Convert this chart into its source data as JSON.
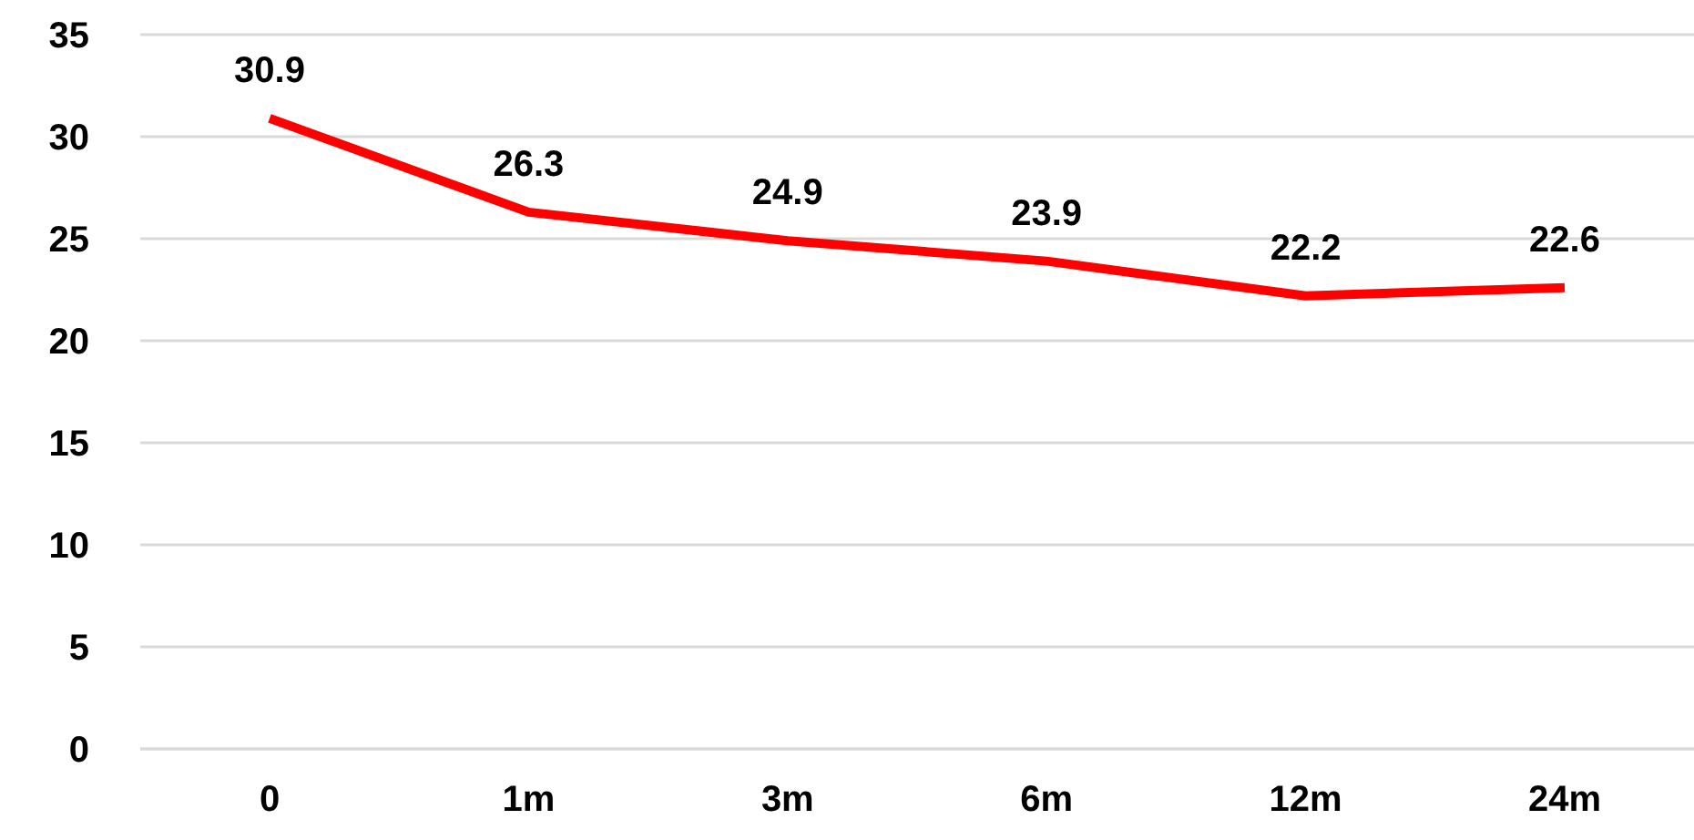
{
  "chart_data": {
    "type": "line",
    "categories": [
      "0",
      "1m",
      "3m",
      "6m",
      "12m",
      "24m"
    ],
    "series": [
      {
        "color": "#ff0000",
        "values": [
          30.9,
          26.3,
          24.9,
          23.9,
          22.2,
          22.6
        ]
      }
    ],
    "ylim": [
      0,
      35
    ],
    "yticks": [
      0,
      5,
      10,
      15,
      20,
      25,
      30,
      35
    ],
    "grid": "y",
    "data_labels": true,
    "marker": "none",
    "line_style": "solid",
    "legend": false
  }
}
